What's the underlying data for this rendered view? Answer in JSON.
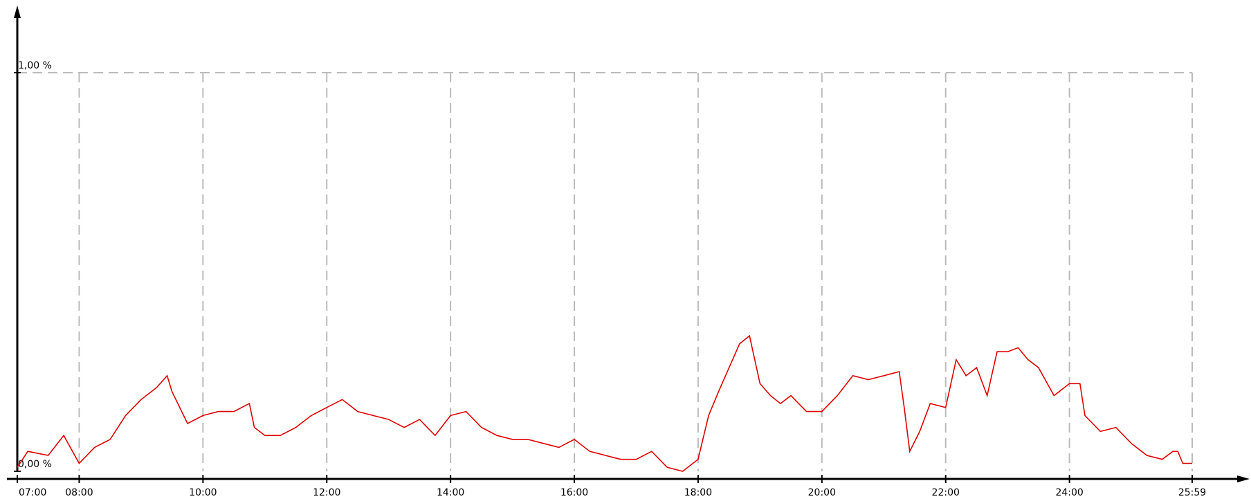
{
  "chart_data": {
    "type": "line",
    "x": [
      7.0,
      7.17,
      7.5,
      7.75,
      8.0,
      8.25,
      8.5,
      8.75,
      9.0,
      9.25,
      9.42,
      9.5,
      9.75,
      10.0,
      10.25,
      10.5,
      10.75,
      10.83,
      11.0,
      11.25,
      11.5,
      11.75,
      12.0,
      12.25,
      12.5,
      12.75,
      13.0,
      13.25,
      13.5,
      13.75,
      14.0,
      14.25,
      14.5,
      14.75,
      15.0,
      15.25,
      15.5,
      15.75,
      16.0,
      16.25,
      16.5,
      16.75,
      17.0,
      17.25,
      17.5,
      17.75,
      18.0,
      18.17,
      18.33,
      18.5,
      18.67,
      18.83,
      19.0,
      19.17,
      19.33,
      19.5,
      19.75,
      20.0,
      20.25,
      20.5,
      20.75,
      21.0,
      21.25,
      21.33,
      21.42,
      21.58,
      21.75,
      22.0,
      22.17,
      22.33,
      22.5,
      22.67,
      22.83,
      23.0,
      23.17,
      23.33,
      23.5,
      23.75,
      24.0,
      24.17,
      24.25,
      24.5,
      24.75,
      25.0,
      25.25,
      25.5,
      25.67,
      25.75,
      25.83,
      25.983
    ],
    "series": [
      {
        "color": "#e00000",
        "values": [
          0.01,
          0.05,
          0.04,
          0.09,
          0.02,
          0.06,
          0.08,
          0.14,
          0.18,
          0.21,
          0.24,
          0.2,
          0.12,
          0.14,
          0.15,
          0.15,
          0.17,
          0.11,
          0.09,
          0.09,
          0.11,
          0.14,
          0.16,
          0.18,
          0.15,
          0.14,
          0.13,
          0.11,
          0.13,
          0.09,
          0.14,
          0.15,
          0.11,
          0.09,
          0.08,
          0.08,
          0.07,
          0.06,
          0.08,
          0.05,
          0.04,
          0.03,
          0.03,
          0.05,
          0.01,
          0.0,
          0.03,
          0.14,
          0.2,
          0.26,
          0.32,
          0.34,
          0.22,
          0.19,
          0.17,
          0.19,
          0.15,
          0.15,
          0.19,
          0.24,
          0.23,
          0.24,
          0.25,
          0.16,
          0.05,
          0.1,
          0.17,
          0.16,
          0.28,
          0.24,
          0.26,
          0.19,
          0.3,
          0.3,
          0.31,
          0.28,
          0.26,
          0.19,
          0.22,
          0.22,
          0.14,
          0.1,
          0.11,
          0.07,
          0.04,
          0.03,
          0.05,
          0.05,
          0.02,
          0.02
        ]
      }
    ],
    "xlim": [
      7.0,
      25.983
    ],
    "xticks": [
      {
        "value": 7,
        "label": "07:00"
      },
      {
        "value": 8,
        "label": "08:00"
      },
      {
        "value": 10,
        "label": "10:00"
      },
      {
        "value": 12,
        "label": "12:00"
      },
      {
        "value": 14,
        "label": "14:00"
      },
      {
        "value": 16,
        "label": "16:00"
      },
      {
        "value": 18,
        "label": "18:00"
      },
      {
        "value": 20,
        "label": "20:00"
      },
      {
        "value": 22,
        "label": "22:00"
      },
      {
        "value": 24,
        "label": "24:00"
      },
      {
        "value": 25.983,
        "label": "25:59"
      }
    ],
    "ylim": [
      0,
      1.15
    ],
    "yticks": [
      {
        "value": 0,
        "label": "0,00 %"
      },
      {
        "value": 1,
        "label": "1,00 %"
      }
    ],
    "grid": true
  }
}
